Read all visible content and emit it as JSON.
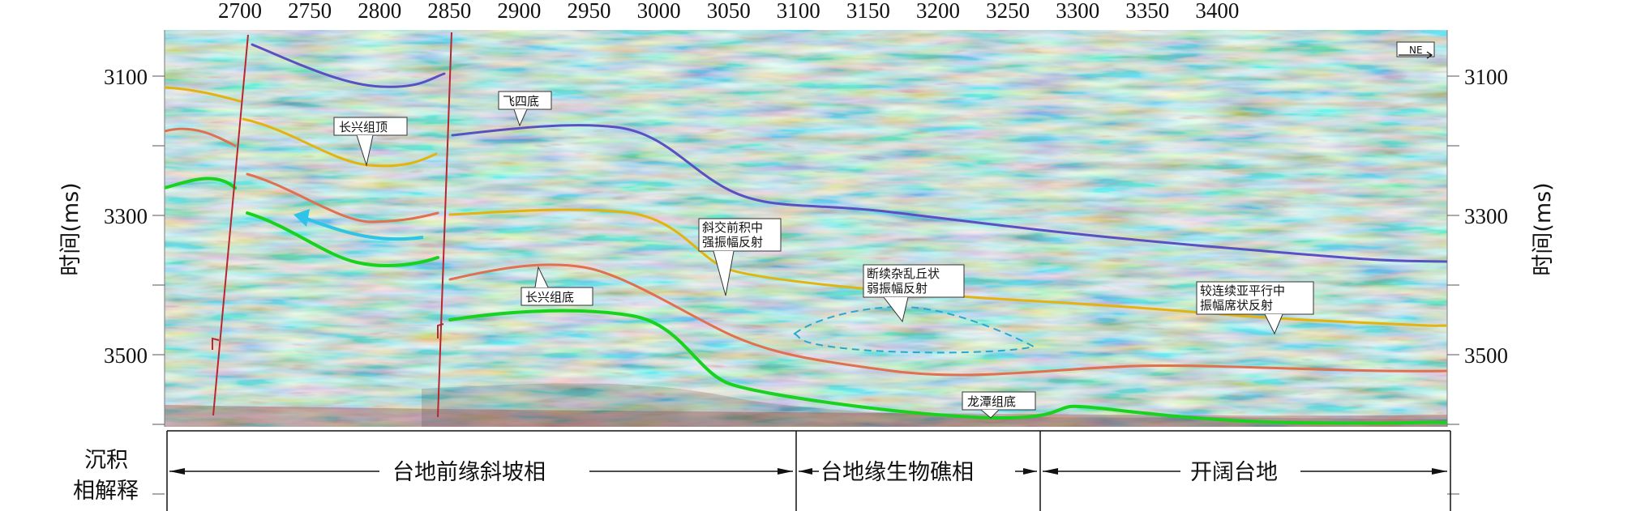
{
  "x_axis": {
    "ticks": [
      "2700",
      "2750",
      "2800",
      "2850",
      "2900",
      "2950",
      "3000",
      "3050",
      "3100",
      "3150",
      "3200",
      "3250",
      "3300",
      "3350",
      "3400"
    ]
  },
  "y_axis": {
    "title_left": "时间(ms)",
    "title_right": "时间(ms)",
    "ticks": [
      "3100",
      "3300",
      "3500"
    ]
  },
  "compass": "NE",
  "horizons": [
    {
      "name": "飞四底",
      "color": "#5b4fc4"
    },
    {
      "name": "长兴组顶",
      "color": "#e3b30f"
    },
    {
      "name": "长兴组底",
      "color": "#e07050"
    },
    {
      "name": "龙潭组底",
      "color": "#18d21d"
    }
  ],
  "annotations": {
    "fei_si_di": "飞四底",
    "changxing_top": "长兴组顶",
    "changxing_bottom": "长兴组底",
    "longtan_bottom": "龙潭组底",
    "oblique_line1": "斜交前积中",
    "oblique_line2": "强振幅反射",
    "chaotic_line1": "断续杂乱丘状",
    "chaotic_line2": "弱振幅反射",
    "parallel_line1": "较连续亚平行中",
    "parallel_line2": "振幅席状反射"
  },
  "facies": {
    "row_label_line1": "沉积",
    "row_label_line2": "相解释",
    "zones": [
      "台地前缘斜坡相",
      "台地缘生物礁相",
      "开阔台地"
    ]
  },
  "colors": {
    "fault": "#b8262e",
    "arrow": "#2ec3e8",
    "dashed_outline": "#2aa8d0"
  }
}
